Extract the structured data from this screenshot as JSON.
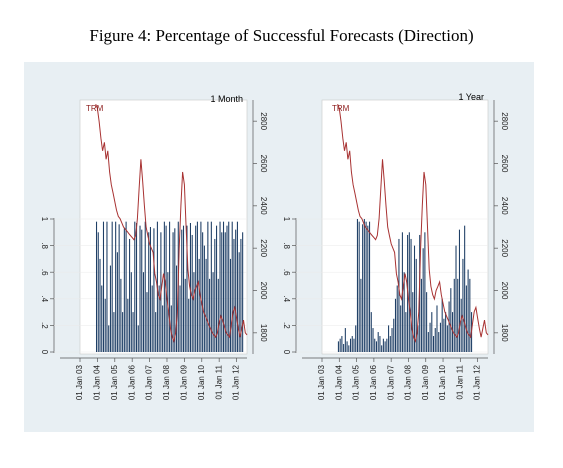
{
  "title": "Figure 4: Percentage of Successful Forecasts (Direction)",
  "colors": {
    "bar": "#1f3f66",
    "line": "#a83232",
    "background": "#e8eff3",
    "panel": "#ffffff"
  },
  "chart_data": [
    {
      "type": "bar",
      "panel_label": "1 Month",
      "legend": "TRM",
      "x_tick_labels": [
        "01 Jan 03",
        "01 Jan 04",
        "01 Jan 05",
        "01 Jan 06",
        "01 Jan 07",
        "01 Jan 08",
        "01 Jan 09",
        "01 Jan 10",
        "01 Jan 11",
        "01 Jan 12"
      ],
      "y_left_ticks": [
        "0",
        ".2",
        ".4",
        ".6",
        ".8",
        "1"
      ],
      "y_left_lim": [
        0,
        1
      ],
      "y_right_ticks": [
        "1800",
        "2000",
        "2200",
        "2400",
        "2600",
        "2800"
      ],
      "y_right_lim": [
        1700,
        2900
      ],
      "x_range": [
        2003.0,
        2012.6
      ],
      "bars": {
        "start": 2003.95,
        "step": 0.1,
        "values": [
          0.98,
          0.9,
          0.7,
          0.5,
          0.98,
          0.4,
          0.98,
          0.2,
          0.65,
          0.98,
          0.3,
          0.98,
          0.75,
          0.96,
          0.55,
          0.3,
          0.93,
          0.98,
          0.4,
          0.85,
          0.6,
          0.3,
          0.98,
          0.97,
          0.2,
          0.95,
          0.92,
          0.6,
          0.98,
          0.45,
          0.9,
          0.94,
          0.5,
          0.93,
          0.3,
          0.98,
          0.5,
          0.9,
          0.35,
          0.98,
          0.95,
          0.6,
          0.98,
          0.35,
          0.9,
          0.93,
          0.65,
          0.98,
          0.5,
          0.92,
          0.95,
          0.55,
          0.95,
          0.4,
          0.97,
          0.88,
          0.6,
          0.95,
          0.98,
          0.7,
          0.98,
          0.9,
          0.8,
          0.7,
          0.98,
          0.55,
          0.98,
          0.6,
          0.85,
          0.95,
          0.55,
          0.98,
          0.9,
          0.98,
          0.9,
          0.95,
          0.98,
          0.7,
          0.98,
          0.85,
          0.92,
          0.98,
          0.75,
          0.85,
          0.9
        ]
      },
      "trm": {
        "x": [
          2003.9,
          2004.0,
          2004.1,
          2004.2,
          2004.3,
          2004.4,
          2004.5,
          2004.6,
          2004.7,
          2004.8,
          2004.9,
          2005.0,
          2005.1,
          2005.2,
          2005.3,
          2005.4,
          2005.5,
          2005.6,
          2005.7,
          2005.8,
          2005.9,
          2006.0,
          2006.1,
          2006.2,
          2006.3,
          2006.4,
          2006.5,
          2006.6,
          2006.7,
          2006.8,
          2006.9,
          2007.0,
          2007.1,
          2007.2,
          2007.3,
          2007.4,
          2007.5,
          2007.6,
          2007.7,
          2007.8,
          2007.9,
          2008.0,
          2008.1,
          2008.2,
          2008.3,
          2008.4,
          2008.5,
          2008.6,
          2008.7,
          2008.8,
          2008.9,
          2009.0,
          2009.1,
          2009.2,
          2009.3,
          2009.4,
          2009.5,
          2009.6,
          2009.7,
          2009.8,
          2009.9,
          2010.0,
          2010.1,
          2010.2,
          2010.3,
          2010.4,
          2010.5,
          2010.6,
          2010.7,
          2010.8,
          2010.9,
          2011.0,
          2011.1,
          2011.2,
          2011.3,
          2011.4,
          2011.5,
          2011.6,
          2011.7,
          2011.8,
          2011.9,
          2012.0,
          2012.1,
          2012.2,
          2012.3,
          2012.4,
          2012.5,
          2012.6
        ],
        "y": [
          2880,
          2860,
          2800,
          2720,
          2660,
          2700,
          2620,
          2660,
          2560,
          2500,
          2460,
          2420,
          2380,
          2350,
          2340,
          2320,
          2300,
          2290,
          2280,
          2270,
          2260,
          2250,
          2240,
          2260,
          2340,
          2480,
          2620,
          2520,
          2400,
          2300,
          2260,
          2220,
          2200,
          2180,
          2080,
          2040,
          1980,
          1960,
          2020,
          2080,
          2040,
          1960,
          1900,
          1820,
          1780,
          1760,
          1800,
          1900,
          2200,
          2400,
          2560,
          2500,
          2300,
          2100,
          2020,
          1980,
          1960,
          2000,
          2020,
          2040,
          1980,
          1940,
          1900,
          1880,
          1860,
          1840,
          1820,
          1800,
          1790,
          1780,
          1800,
          1850,
          1880,
          1860,
          1830,
          1800,
          1790,
          1780,
          1840,
          1900,
          1920,
          1870,
          1820,
          1780,
          1820,
          1860,
          1800,
          1790
        ]
      }
    },
    {
      "type": "bar",
      "panel_label": "1 Year",
      "legend": "TRM",
      "x_tick_labels": [
        "01 Jan 03",
        "01 Jan 04",
        "01 Jan 05",
        "01 Jan 06",
        "01 Jan 07",
        "01 Jan 08",
        "01 Jan 09",
        "01 Jan 10",
        "01 Jan 11",
        "01 Jan 12"
      ],
      "y_left_ticks": [
        "0",
        ".2",
        ".4",
        ".6",
        ".8",
        "1"
      ],
      "y_left_lim": [
        0,
        1
      ],
      "y_right_ticks": [
        "1800",
        "2000",
        "2200",
        "2400",
        "2600",
        "2800"
      ],
      "y_right_lim": [
        1700,
        2900
      ],
      "x_range": [
        2003.0,
        2012.6
      ],
      "bars": {
        "start": 2003.95,
        "step": 0.1,
        "values": [
          0.08,
          0.1,
          0.12,
          0.06,
          0.18,
          0.08,
          0.05,
          0.1,
          0.12,
          0.1,
          0.2,
          1.0,
          0.98,
          0.55,
          0.96,
          1.0,
          0.98,
          0.95,
          0.98,
          0.3,
          0.18,
          0.1,
          0.08,
          0.15,
          0.12,
          0.05,
          0.1,
          0.08,
          0.1,
          0.2,
          0.12,
          0.18,
          0.25,
          0.4,
          0.5,
          0.85,
          0.35,
          0.9,
          0.6,
          0.3,
          0.88,
          0.9,
          0.85,
          0.45,
          0.8,
          0.7,
          0.2,
          0.88,
          0.55,
          0.78,
          0.9,
          0.45,
          0.15,
          0.22,
          0.3,
          0.12,
          0.18,
          0.35,
          0.15,
          0.22,
          0.4,
          0.25,
          0.3,
          0.2,
          0.38,
          0.48,
          0.3,
          0.55,
          0.8,
          0.55,
          0.92,
          0.4,
          0.7,
          0.95,
          0.5,
          0.62,
          0.55,
          0.3
        ]
      },
      "trm": {
        "x": [
          2003.9,
          2004.0,
          2004.1,
          2004.2,
          2004.3,
          2004.4,
          2004.5,
          2004.6,
          2004.7,
          2004.8,
          2004.9,
          2005.0,
          2005.1,
          2005.2,
          2005.3,
          2005.4,
          2005.5,
          2005.6,
          2005.7,
          2005.8,
          2005.9,
          2006.0,
          2006.1,
          2006.2,
          2006.3,
          2006.4,
          2006.5,
          2006.6,
          2006.7,
          2006.8,
          2006.9,
          2007.0,
          2007.1,
          2007.2,
          2007.3,
          2007.4,
          2007.5,
          2007.6,
          2007.7,
          2007.8,
          2007.9,
          2008.0,
          2008.1,
          2008.2,
          2008.3,
          2008.4,
          2008.5,
          2008.6,
          2008.7,
          2008.8,
          2008.9,
          2009.0,
          2009.1,
          2009.2,
          2009.3,
          2009.4,
          2009.5,
          2009.6,
          2009.7,
          2009.8,
          2009.9,
          2010.0,
          2010.1,
          2010.2,
          2010.3,
          2010.4,
          2010.5,
          2010.6,
          2010.7,
          2010.8,
          2010.9,
          2011.0,
          2011.1,
          2011.2,
          2011.3,
          2011.4,
          2011.5,
          2011.6,
          2011.7,
          2011.8,
          2011.9,
          2012.0,
          2012.1,
          2012.2,
          2012.3,
          2012.4,
          2012.5,
          2012.6
        ],
        "y": [
          2880,
          2860,
          2800,
          2720,
          2660,
          2700,
          2620,
          2660,
          2560,
          2500,
          2460,
          2420,
          2380,
          2350,
          2340,
          2320,
          2300,
          2290,
          2280,
          2270,
          2260,
          2250,
          2240,
          2260,
          2340,
          2480,
          2620,
          2520,
          2400,
          2300,
          2260,
          2220,
          2200,
          2180,
          2080,
          2040,
          1980,
          1960,
          2020,
          2080,
          2040,
          1960,
          1900,
          1820,
          1780,
          1760,
          1800,
          1900,
          2200,
          2400,
          2560,
          2500,
          2300,
          2100,
          2020,
          1980,
          1960,
          2000,
          2020,
          2040,
          1980,
          1940,
          1900,
          1880,
          1860,
          1840,
          1820,
          1800,
          1790,
          1780,
          1800,
          1850,
          1880,
          1860,
          1830,
          1800,
          1790,
          1780,
          1840,
          1900,
          1920,
          1870,
          1820,
          1780,
          1820,
          1860,
          1800,
          1790
        ]
      }
    }
  ]
}
